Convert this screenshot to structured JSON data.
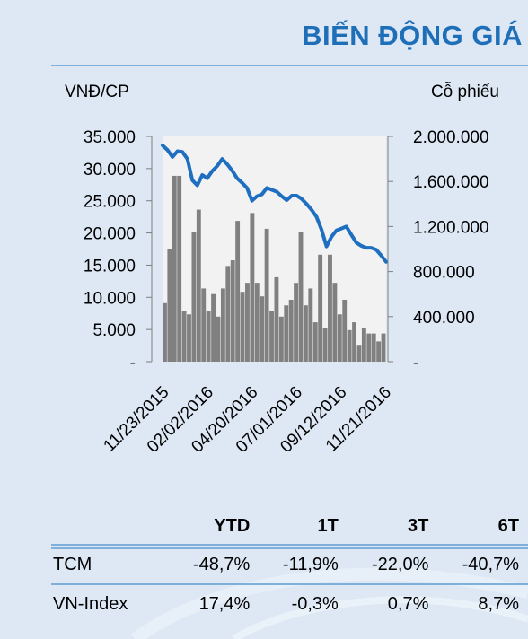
{
  "header": {
    "title": "BIẾN ĐỘNG GIÁ"
  },
  "chart_data": {
    "type": "line",
    "price_unit_label": "VNĐ/CP",
    "volume_unit_label": "Cỗ phiếu",
    "x_tick_labels": [
      "11/23/2015",
      "02/02/2016",
      "04/20/2016",
      "07/01/2016",
      "09/12/2016",
      "11/21/2016"
    ],
    "y_left_ticks": [
      "35.000",
      "30.000",
      "25.000",
      "20.000",
      "15.000",
      "10.000",
      "5.000",
      "-"
    ],
    "y_right_ticks": [
      "2.000.000",
      "1.600.000",
      "1.200.000",
      "800.000",
      "400.000",
      "-"
    ],
    "ylim_left": [
      0,
      35000
    ],
    "ylim_right": [
      0,
      2000000
    ],
    "grid": false,
    "colors": {
      "price_line": "#1f6fc0",
      "volume_bars": "#808080",
      "plot_background": "#f2f2f2"
    },
    "series": [
      {
        "type": "line",
        "axis": "left",
        "values": [
          33600,
          32900,
          31800,
          32700,
          32600,
          31500,
          28200,
          27400,
          29000,
          28500,
          29600,
          30400,
          31500,
          30700,
          29700,
          28500,
          27800,
          27000,
          25000,
          25700,
          26000,
          27000,
          26700,
          26400,
          25700,
          25100,
          25800,
          25800,
          25300,
          24500,
          23600,
          22500,
          20500,
          17900,
          19400,
          20400,
          20700,
          21000,
          19700,
          18500,
          18000,
          17700,
          17700,
          17400,
          16500,
          15500
        ]
      },
      {
        "type": "bar",
        "axis": "right",
        "values": [
          520000,
          1000000,
          1650000,
          1650000,
          450000,
          420000,
          1150000,
          1350000,
          650000,
          450000,
          600000,
          400000,
          650000,
          850000,
          900000,
          1250000,
          620000,
          700000,
          1320000,
          700000,
          580000,
          1180000,
          450000,
          750000,
          400000,
          500000,
          550000,
          700000,
          1150000,
          500000,
          650000,
          350000,
          950000,
          300000,
          950000,
          700000,
          420000,
          550000,
          280000,
          350000,
          150000,
          300000,
          250000,
          250000,
          180000,
          250000
        ]
      }
    ]
  },
  "performance": {
    "headers": [
      "YTD",
      "1T",
      "3T",
      "6T"
    ],
    "rows": [
      {
        "name": "TCM",
        "values": [
          "-48,7%",
          "-11,9%",
          "-22,0%",
          "-40,7%"
        ]
      },
      {
        "name": "VN-Index",
        "values": [
          "17,4%",
          "-0,3%",
          "0,7%",
          "8,7%"
        ]
      }
    ]
  }
}
